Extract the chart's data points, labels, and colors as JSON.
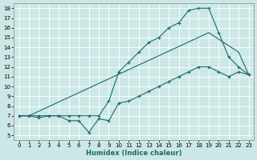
{
  "xlabel": "Humidex (Indice chaleur)",
  "bg_color": "#cce8e6",
  "line_color": "#1a6b6b",
  "grid_color": "#b0d8d5",
  "xlim": [
    -0.5,
    23.5
  ],
  "ylim": [
    4.5,
    18.5
  ],
  "xticks": [
    0,
    1,
    2,
    3,
    4,
    5,
    6,
    7,
    8,
    9,
    10,
    11,
    12,
    13,
    14,
    15,
    16,
    17,
    18,
    19,
    20,
    21,
    22,
    23
  ],
  "yticks": [
    5,
    6,
    7,
    8,
    9,
    10,
    11,
    12,
    13,
    14,
    15,
    16,
    17,
    18
  ],
  "curve1_x": [
    0,
    1,
    2,
    3,
    4,
    5,
    6,
    7,
    8,
    9,
    10,
    11,
    12,
    13,
    14,
    15,
    16,
    17,
    18,
    19,
    20,
    21,
    22,
    23
  ],
  "curve1_y": [
    7.0,
    7.0,
    6.8,
    7.0,
    7.0,
    6.5,
    6.5,
    5.3,
    6.7,
    6.5,
    8.3,
    8.5,
    9.0,
    9.5,
    10.0,
    10.5,
    11.0,
    11.5,
    12.0,
    12.0,
    11.5,
    11.0,
    11.5,
    11.2
  ],
  "curve2_x": [
    0,
    1,
    2,
    3,
    4,
    5,
    6,
    7,
    8,
    9,
    10,
    11,
    12,
    13,
    14,
    15,
    16,
    17,
    18,
    19,
    20,
    21,
    22,
    23
  ],
  "curve2_y": [
    7.0,
    7.0,
    7.0,
    7.0,
    7.0,
    7.0,
    7.0,
    7.0,
    7.0,
    8.5,
    11.5,
    12.5,
    13.5,
    14.5,
    15.0,
    16.0,
    16.5,
    17.8,
    18.0,
    18.0,
    15.5,
    13.0,
    12.0,
    11.2
  ],
  "curve3_x": [
    0,
    1,
    19,
    22,
    23
  ],
  "curve3_y": [
    7.0,
    7.0,
    15.5,
    13.5,
    11.2
  ]
}
